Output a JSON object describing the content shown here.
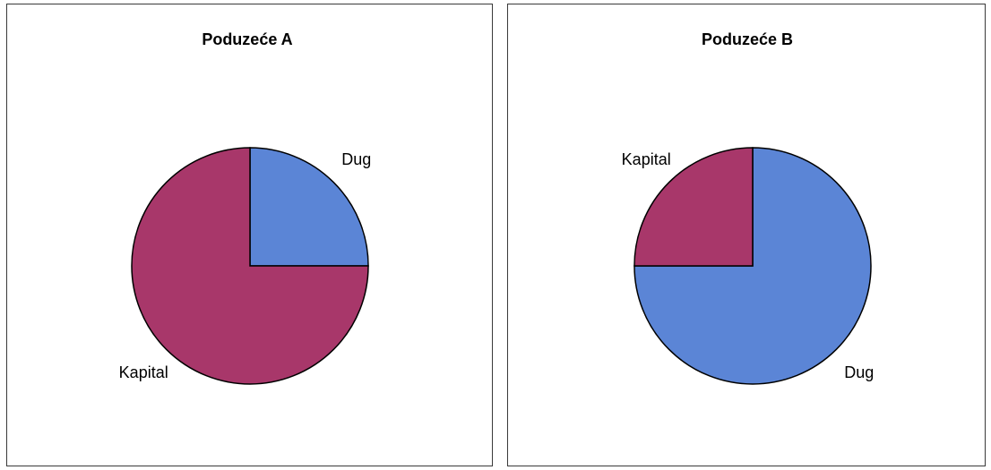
{
  "chart_data": [
    {
      "type": "pie",
      "title": "Poduzeće A",
      "categories": [
        "Dug",
        "Kapital"
      ],
      "values": [
        25,
        75
      ],
      "colors": [
        "#5b85d6",
        "#a8376a"
      ],
      "start_angle_deg": 0,
      "direction": "clockwise",
      "legend": "none"
    },
    {
      "type": "pie",
      "title": "Poduzeće B",
      "categories": [
        "Dug",
        "Kapital"
      ],
      "values": [
        75,
        25
      ],
      "colors": [
        "#5b85d6",
        "#a8376a"
      ],
      "start_angle_deg": 0,
      "direction": "clockwise",
      "legend": "none"
    }
  ]
}
